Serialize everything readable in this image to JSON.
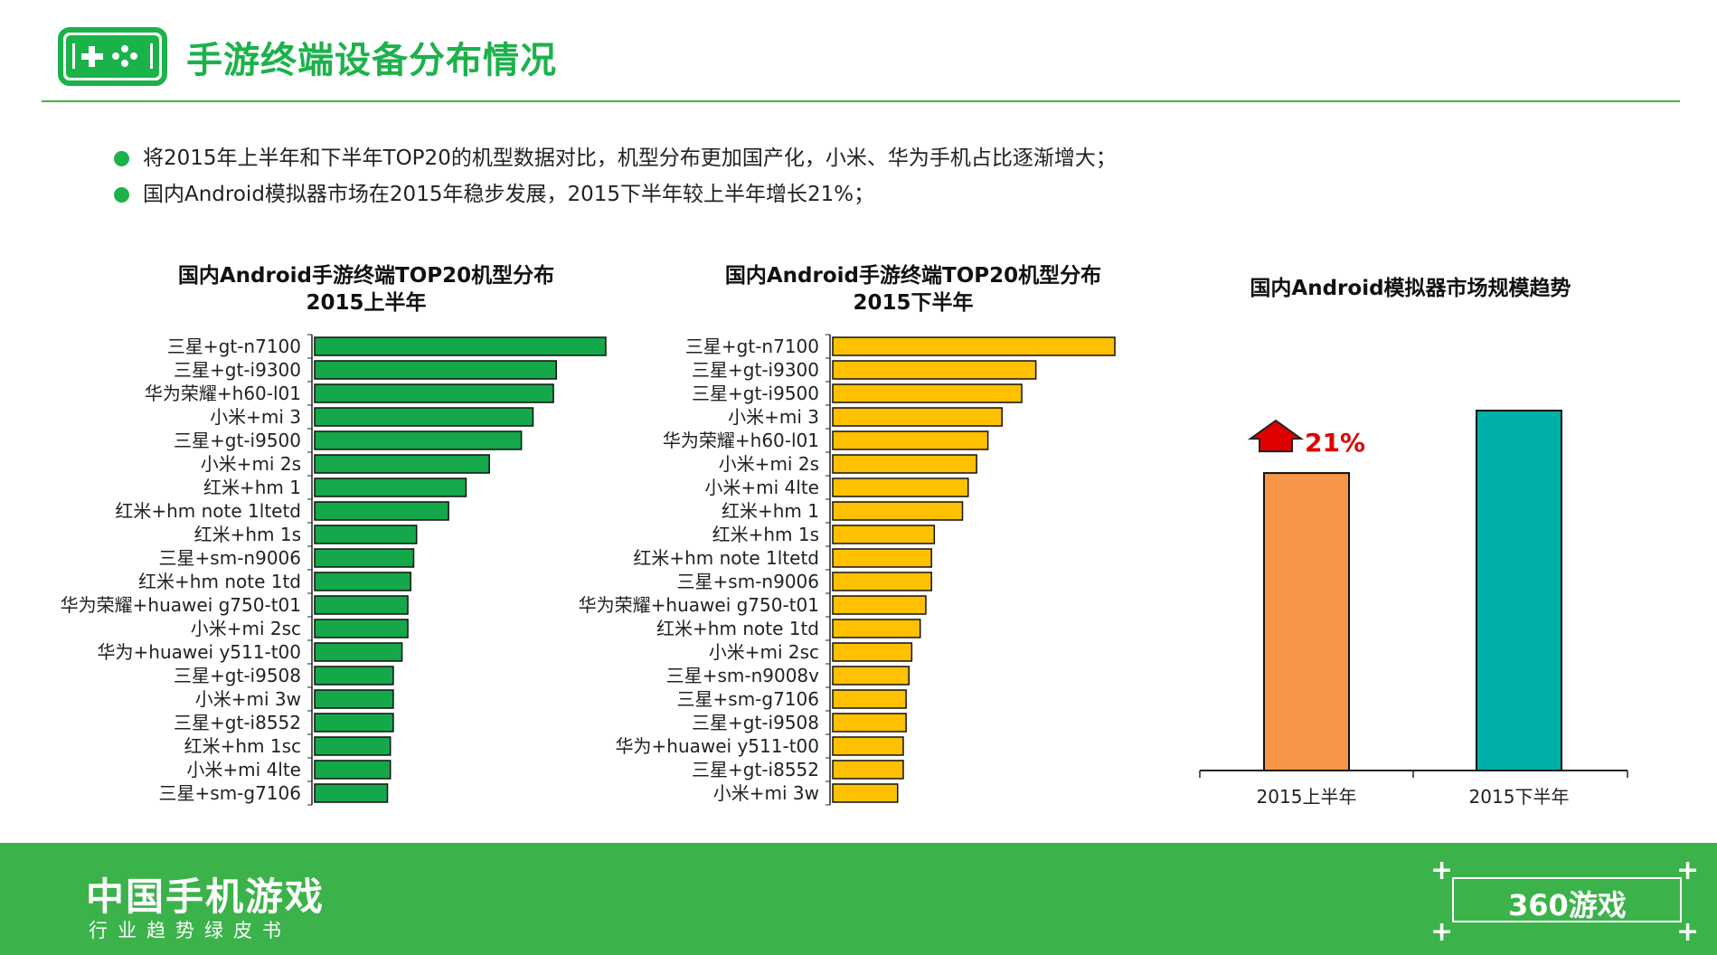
{
  "header": {
    "title": "手游终端设备分布情况",
    "icon": "gamepad-icon",
    "accent_color": "#1bb24a"
  },
  "bullets": [
    "将2015年上半年和下半年TOP20的机型数据对比，机型分布更加国产化，小米、华为手机占比逐渐增大；",
    "国内Android模拟器市场在2015年稳步发展，2015下半年较上半年增长21%；"
  ],
  "chart_data": [
    {
      "type": "bar",
      "orientation": "horizontal",
      "title": "国内Android手游终端TOP20机型分布",
      "subtitle": "2015上半年",
      "bar_color": "#14a84a",
      "categories": [
        "三星+gt-n7100",
        "三星+gt-i9300",
        "华为荣耀+h60-l01",
        "小米+mi 3",
        "三星+gt-i9500",
        "小米+mi 2s",
        "红米+hm 1",
        "红米+hm note 1ltetd",
        "红米+hm 1s",
        "三星+sm-n9006",
        "红米+hm note 1td",
        "华为荣耀+huawei g750-t01",
        "小米+mi 2sc",
        "华为+huawei y511-t00",
        "三星+gt-i9508",
        "小米+mi 3w",
        "三星+gt-i8552",
        "红米+hm 1sc",
        "小米+mi 4lte",
        "三星+sm-g7106"
      ],
      "values": [
        100,
        83,
        82,
        75,
        71,
        60,
        52,
        46,
        35,
        34,
        33,
        32,
        32,
        30,
        27,
        27,
        27,
        26,
        26,
        25
      ],
      "grid": false
    },
    {
      "type": "bar",
      "orientation": "horizontal",
      "title": "国内Android手游终端TOP20机型分布",
      "subtitle": "2015下半年",
      "bar_color": "#ffc000",
      "categories": [
        "三星+gt-n7100",
        "三星+gt-i9300",
        "三星+gt-i9500",
        "小米+mi 3",
        "华为荣耀+h60-l01",
        "小米+mi 2s",
        "小米+mi 4lte",
        "红米+hm 1",
        "红米+hm 1s",
        "红米+hm note 1ltetd",
        "三星+sm-n9006",
        "华为荣耀+huawei g750-t01",
        "红米+hm note 1td",
        "小米+mi 2sc",
        "三星+sm-n9008v",
        "三星+sm-g7106",
        "三星+gt-i9508",
        "华为+huawei y511-t00",
        "三星+gt-i8552",
        "小米+mi 3w"
      ],
      "values": [
        100,
        72,
        67,
        60,
        55,
        51,
        48,
        46,
        36,
        35,
        35,
        33,
        31,
        28,
        27,
        26,
        26,
        25,
        25,
        23
      ],
      "grid": false
    },
    {
      "type": "bar",
      "title": "国内Android模拟器市场规模趋势",
      "categories": [
        "2015上半年",
        "2015下半年"
      ],
      "values": [
        100,
        121
      ],
      "colors": [
        "#f79646",
        "#00b0a8"
      ],
      "annotation": {
        "text": "21%",
        "color": "#e00000",
        "arrow": "up-arrow-icon"
      },
      "grid": false
    }
  ],
  "footer": {
    "title": "中国手机游戏",
    "subtitle": "行业趋势绿皮书",
    "logo_text": "360游戏",
    "background": "#3bb34a"
  }
}
